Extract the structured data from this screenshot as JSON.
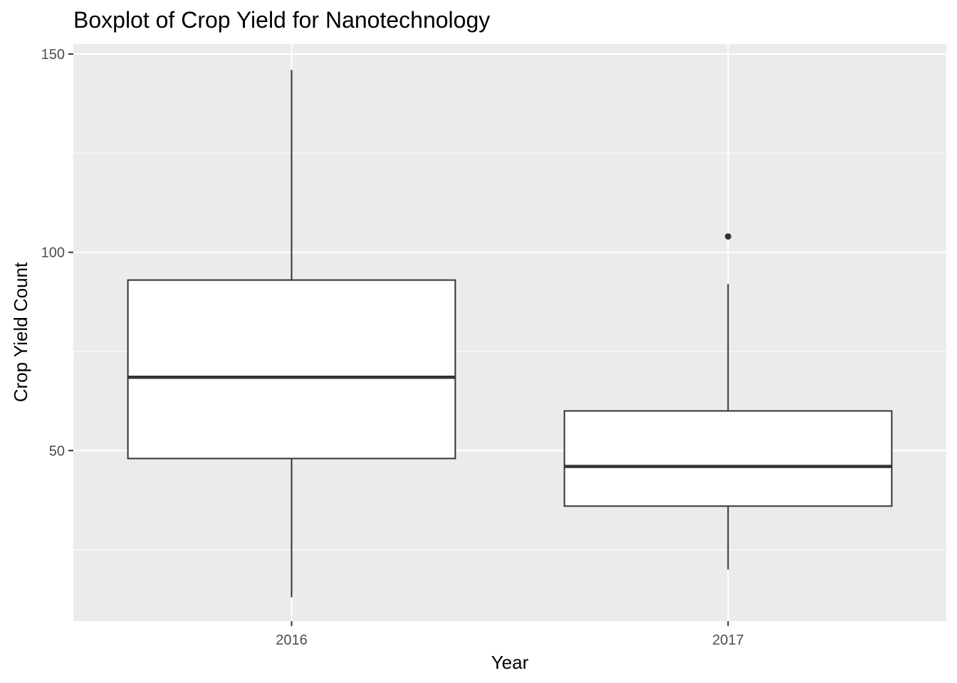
{
  "chart_data": {
    "type": "boxplot",
    "title": "Boxplot of Crop Yield for Nanotechnology",
    "xlabel": "Year",
    "ylabel": "Crop Yield Count",
    "categories": [
      "2016",
      "2017"
    ],
    "ylim": [
      7,
      152.5
    ],
    "yticks": [
      50,
      100,
      150
    ],
    "y_minor_ticks": [
      25,
      75,
      125
    ],
    "grid": true,
    "boxes": [
      {
        "category": "2016",
        "whisker_low": 13,
        "q1": 48,
        "median": 68.5,
        "q3": 93,
        "whisker_high": 146,
        "outliers": []
      },
      {
        "category": "2017",
        "whisker_low": 20,
        "q1": 36,
        "median": 46,
        "q3": 60,
        "whisker_high": 92,
        "outliers": [
          104
        ]
      }
    ],
    "colors": {
      "panel_background": "#ebebeb",
      "grid": "#ffffff",
      "box_fill": "#ffffff",
      "box_line": "#333333",
      "tick_text": "#4d4d4d"
    }
  }
}
